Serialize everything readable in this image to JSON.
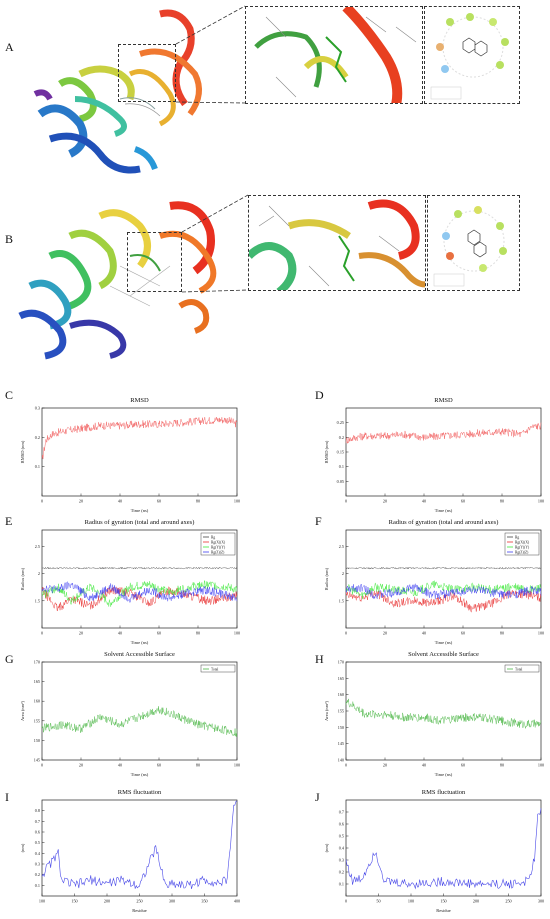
{
  "panels": {
    "a": "A",
    "b": "B",
    "c": "C",
    "d": "D",
    "e": "E",
    "f": "F",
    "g": "G",
    "h": "H",
    "i": "I",
    "j": "J"
  },
  "colors": {
    "rmsd": "#f05a5a",
    "rg_total": "#444444",
    "rg_x": "#e83030",
    "rg_y": "#3ee83a",
    "rg_z": "#3e3ef0",
    "sasa": "#4fb84a",
    "rmsf": "#4a4ae8"
  },
  "chart_data": [
    {
      "panel": "C",
      "type": "line",
      "title": "RMSD",
      "xlabel": "Time (ns)",
      "ylabel": "RMSD (nm)",
      "xlim": [
        0,
        100
      ],
      "ylim": [
        0,
        0.3
      ],
      "xticks": [
        "0",
        "20",
        "40",
        "60",
        "80",
        "100"
      ],
      "yticks": [
        "0.1",
        "0.2",
        "0.3"
      ],
      "series": [
        {
          "color": "#f05a5a",
          "x": [
            0,
            2,
            5,
            10,
            20,
            30,
            40,
            50,
            60,
            70,
            80,
            90,
            95,
            100
          ],
          "values": [
            0.12,
            0.19,
            0.21,
            0.22,
            0.23,
            0.24,
            0.24,
            0.245,
            0.245,
            0.25,
            0.255,
            0.26,
            0.26,
            0.245
          ]
        }
      ]
    },
    {
      "panel": "D",
      "type": "line",
      "title": "RMSD",
      "xlabel": "Time (ns)",
      "ylabel": "RMSD (nm)",
      "xlim": [
        0,
        100
      ],
      "ylim": [
        0,
        0.3
      ],
      "xticks": [
        "0",
        "20",
        "40",
        "60",
        "80",
        "100"
      ],
      "yticks": [
        "0.05",
        "0.1",
        "0.15",
        "0.2",
        "0.25"
      ],
      "series": [
        {
          "color": "#f05a5a",
          "x": [
            0,
            5,
            10,
            20,
            30,
            40,
            50,
            60,
            70,
            80,
            90,
            95,
            100
          ],
          "values": [
            0.19,
            0.2,
            0.205,
            0.205,
            0.21,
            0.2,
            0.205,
            0.21,
            0.215,
            0.22,
            0.21,
            0.235,
            0.24
          ]
        }
      ]
    },
    {
      "panel": "E",
      "type": "line",
      "title": "Radius of gyration (total and around axes)",
      "xlabel": "Time (ns)",
      "ylabel": "Radius (nm)",
      "xlim": [
        0,
        100
      ],
      "ylim": [
        1.0,
        2.8
      ],
      "xticks": [
        "0",
        "20",
        "40",
        "60",
        "80",
        "100"
      ],
      "yticks": [
        "1.5",
        "2",
        "2.5"
      ],
      "legend": [
        "Rg",
        "Rg(X)(X)",
        "Rg(Y)(Y)",
        "Rg(Z)(Z)"
      ],
      "series": [
        {
          "name": "Rg",
          "color": "#444444",
          "x": [
            0,
            20,
            40,
            60,
            80,
            100
          ],
          "values": [
            2.1,
            2.1,
            2.1,
            2.1,
            2.1,
            2.1
          ]
        },
        {
          "name": "Rg(X)(X)",
          "color": "#e83030",
          "x": [
            0,
            8,
            15,
            25,
            35,
            45,
            55,
            65,
            75,
            85,
            95,
            100
          ],
          "values": [
            1.7,
            1.35,
            1.55,
            1.4,
            1.7,
            1.65,
            1.45,
            1.7,
            1.6,
            1.5,
            1.55,
            1.6
          ]
        },
        {
          "name": "Rg(Y)(Y)",
          "color": "#3ee83a",
          "x": [
            0,
            8,
            15,
            25,
            35,
            45,
            55,
            65,
            75,
            85,
            95,
            100
          ],
          "values": [
            1.6,
            1.75,
            1.5,
            1.75,
            1.45,
            1.75,
            1.8,
            1.65,
            1.75,
            1.8,
            1.75,
            1.7
          ]
        },
        {
          "name": "Rg(Z)(Z)",
          "color": "#3e3ef0",
          "x": [
            0,
            8,
            15,
            25,
            35,
            45,
            55,
            65,
            75,
            85,
            95,
            100
          ],
          "values": [
            1.75,
            1.7,
            1.8,
            1.55,
            1.75,
            1.55,
            1.7,
            1.55,
            1.65,
            1.7,
            1.6,
            1.55
          ]
        }
      ]
    },
    {
      "panel": "F",
      "type": "line",
      "title": "Radius of gyration (total and around axes)",
      "xlabel": "Time (ns)",
      "ylabel": "Radius (nm)",
      "xlim": [
        0,
        100
      ],
      "ylim": [
        1.0,
        2.8
      ],
      "xticks": [
        "0",
        "20",
        "40",
        "60",
        "80",
        "100"
      ],
      "yticks": [
        "1.5",
        "2",
        "2.5"
      ],
      "legend": [
        "Rg",
        "Rg(X)(X)",
        "Rg(Y)(Y)",
        "Rg(Z)(Z)"
      ],
      "series": [
        {
          "name": "Rg",
          "color": "#444444",
          "x": [
            0,
            20,
            40,
            60,
            80,
            100
          ],
          "values": [
            2.1,
            2.1,
            2.1,
            2.1,
            2.1,
            2.1
          ]
        },
        {
          "name": "Rg(X)(X)",
          "color": "#e83030",
          "x": [
            0,
            8,
            15,
            25,
            35,
            45,
            55,
            65,
            75,
            85,
            95,
            100
          ],
          "values": [
            1.6,
            1.55,
            1.65,
            1.45,
            1.5,
            1.45,
            1.6,
            1.35,
            1.45,
            1.65,
            1.6,
            1.55
          ]
        },
        {
          "name": "Rg(Y)(Y)",
          "color": "#3ee83a",
          "x": [
            0,
            8,
            15,
            25,
            35,
            45,
            55,
            65,
            75,
            85,
            95,
            100
          ],
          "values": [
            1.75,
            1.6,
            1.75,
            1.7,
            1.65,
            1.8,
            1.7,
            1.75,
            1.7,
            1.75,
            1.7,
            1.75
          ]
        },
        {
          "name": "Rg(Z)(Z)",
          "color": "#3e3ef0",
          "x": [
            0,
            8,
            15,
            25,
            35,
            45,
            55,
            65,
            75,
            85,
            95,
            100
          ],
          "values": [
            1.7,
            1.75,
            1.6,
            1.65,
            1.75,
            1.6,
            1.65,
            1.7,
            1.65,
            1.6,
            1.7,
            1.65
          ]
        }
      ]
    },
    {
      "panel": "G",
      "type": "line",
      "title": "Solvent Accessible Surface",
      "xlabel": "Time (ns)",
      "ylabel": "Area (nm²)",
      "xlim": [
        0,
        100
      ],
      "ylim": [
        145,
        170
      ],
      "xticks": [
        "0",
        "20",
        "40",
        "60",
        "80",
        "100"
      ],
      "yticks": [
        "145",
        "150",
        "155",
        "160",
        "165",
        "170"
      ],
      "legend": [
        "Total"
      ],
      "series": [
        {
          "name": "Total",
          "color": "#4fb84a",
          "x": [
            0,
            10,
            20,
            30,
            40,
            50,
            55,
            60,
            70,
            80,
            90,
            100
          ],
          "values": [
            153,
            154,
            153,
            156,
            154,
            156,
            157,
            158,
            156,
            154,
            153,
            152
          ]
        }
      ]
    },
    {
      "panel": "H",
      "type": "line",
      "title": "Solvent Accessible Surface",
      "xlabel": "Time (ns)",
      "ylabel": "Area (nm²)",
      "xlim": [
        0,
        100
      ],
      "ylim": [
        140,
        170
      ],
      "xticks": [
        "0",
        "20",
        "40",
        "60",
        "80",
        "100"
      ],
      "yticks": [
        "140",
        "145",
        "150",
        "155",
        "160",
        "165",
        "170"
      ],
      "legend": [
        "Total"
      ],
      "series": [
        {
          "name": "Total",
          "color": "#4fb84a",
          "x": [
            0,
            5,
            10,
            20,
            30,
            40,
            50,
            60,
            70,
            80,
            90,
            100
          ],
          "values": [
            158,
            156,
            154,
            154,
            153,
            153,
            152,
            153,
            153,
            152,
            151,
            151
          ]
        }
      ]
    },
    {
      "panel": "I",
      "type": "line",
      "title": "RMS fluctuation",
      "xlabel": "Residue",
      "ylabel": "(nm)",
      "xlim": [
        100,
        400
      ],
      "ylim": [
        0,
        0.9
      ],
      "xticks": [
        "100",
        "150",
        "200",
        "250",
        "300",
        "350",
        "400"
      ],
      "yticks": [
        "0.1",
        "0.2",
        "0.3",
        "0.4",
        "0.5",
        "0.6",
        "0.7",
        "0.8"
      ],
      "series": [
        {
          "color": "#4a4ae8",
          "x": [
            100,
            125,
            130,
            150,
            175,
            200,
            225,
            250,
            275,
            290,
            300,
            325,
            350,
            375,
            385,
            390,
            395,
            400
          ],
          "values": [
            0.2,
            0.4,
            0.15,
            0.1,
            0.15,
            0.12,
            0.15,
            0.1,
            0.45,
            0.1,
            0.12,
            0.1,
            0.15,
            0.12,
            0.15,
            0.5,
            0.85,
            0.9
          ]
        }
      ]
    },
    {
      "panel": "J",
      "type": "line",
      "title": "RMS fluctuation",
      "xlabel": "Residue",
      "ylabel": "(nm)",
      "xlim": [
        0,
        300
      ],
      "ylim": [
        0,
        0.8
      ],
      "xticks": [
        "0",
        "50",
        "100",
        "150",
        "200",
        "250",
        "300"
      ],
      "yticks": [
        "0.1",
        "0.2",
        "0.3",
        "0.4",
        "0.5",
        "0.6",
        "0.7"
      ],
      "series": [
        {
          "color": "#4a4ae8",
          "x": [
            0,
            10,
            25,
            45,
            60,
            100,
            150,
            200,
            250,
            280,
            290,
            295,
            300
          ],
          "values": [
            0.3,
            0.12,
            0.15,
            0.38,
            0.12,
            0.1,
            0.12,
            0.1,
            0.1,
            0.12,
            0.3,
            0.65,
            0.75
          ]
        }
      ]
    }
  ]
}
